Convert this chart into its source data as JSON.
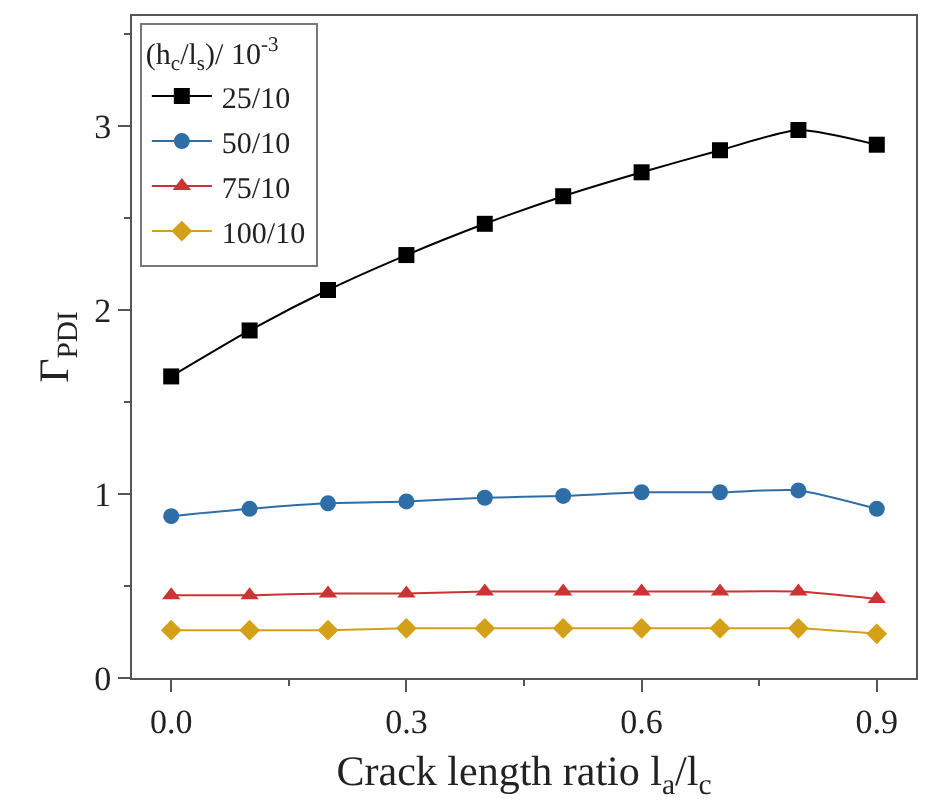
{
  "chart_data": {
    "type": "line",
    "xlabel": "Crack length ratio l$_{a}$/l$_{c}$",
    "ylabel": "Γ$_{PDI}$",
    "legend_title": "(h$_{c}$/l$_{s}$)/ 10$^{-3}$",
    "x": [
      0,
      0.1,
      0.2,
      0.3,
      0.4,
      0.5,
      0.6,
      0.7,
      0.8,
      0.9
    ],
    "series": [
      {
        "name": "25/10",
        "color": "#000000",
        "marker": "square",
        "values": [
          1.64,
          1.89,
          2.11,
          2.3,
          2.47,
          2.62,
          2.75,
          2.87,
          2.98,
          2.9
        ]
      },
      {
        "name": "50/10",
        "color": "#2e6ea6",
        "marker": "circle",
        "values": [
          0.88,
          0.92,
          0.95,
          0.96,
          0.98,
          0.99,
          1.01,
          1.01,
          1.02,
          0.92
        ]
      },
      {
        "name": "75/10",
        "color": "#cc3333",
        "marker": "triangle",
        "values": [
          0.45,
          0.45,
          0.46,
          0.46,
          0.47,
          0.47,
          0.47,
          0.47,
          0.47,
          0.43
        ]
      },
      {
        "name": "100/10",
        "color": "#d4a017",
        "marker": "diamond",
        "values": [
          0.26,
          0.26,
          0.26,
          0.27,
          0.27,
          0.27,
          0.27,
          0.27,
          0.27,
          0.24
        ]
      }
    ],
    "xlim": [
      -0.05,
      0.95
    ],
    "xticks": [
      {
        "value": 0,
        "label": "0.0"
      },
      0.3,
      0.6,
      0.9
    ],
    "ylim": [
      0,
      3.6
    ],
    "yticks": [
      0,
      1,
      2,
      3
    ],
    "grid": false,
    "legend": "top left"
  }
}
